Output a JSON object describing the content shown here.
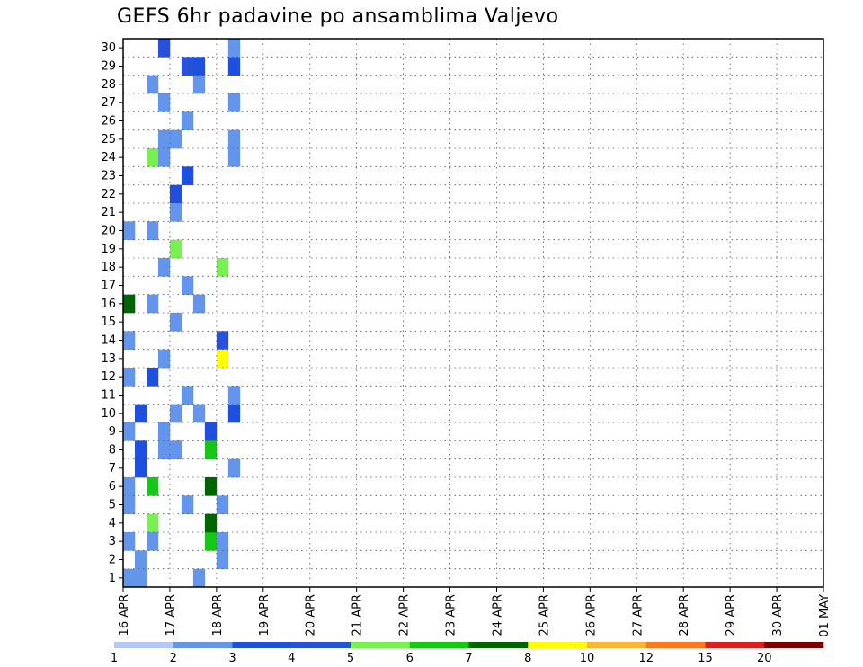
{
  "chart_data": {
    "type": "heatmap",
    "title": "GEFS 6hr padavine po ansamblima Valjevo",
    "x_tick_labels": [
      "16 APR",
      "17 APR",
      "18 APR",
      "19 APR",
      "20 APR",
      "21 APR",
      "22 APR",
      "23 APR",
      "24 APR",
      "25 APR",
      "26 APR",
      "27 APR",
      "28 APR",
      "29 APR",
      "30 APR",
      "01 MAY"
    ],
    "y_tick_labels": [
      "1",
      "2",
      "3",
      "4",
      "5",
      "6",
      "7",
      "8",
      "9",
      "10",
      "11",
      "12",
      "13",
      "14",
      "15",
      "16",
      "17",
      "18",
      "19",
      "20",
      "21",
      "22",
      "23",
      "24",
      "25",
      "26",
      "27",
      "28",
      "29",
      "30"
    ],
    "legend": {
      "labels": [
        "1",
        "2",
        "3",
        "4",
        "5",
        "6",
        "7",
        "8",
        "10",
        "12",
        "15",
        "20"
      ],
      "colors": [
        "#b4c8f5",
        "#6495ed",
        "#1e50e0",
        "#2850d8",
        "#78f050",
        "#14c814",
        "#006400",
        "#ffff00",
        "#ffb432",
        "#ff781e",
        "#dc1e1e",
        "#7d0000"
      ]
    },
    "x_range_steps": [
      0,
      60
    ],
    "y_range": [
      0,
      30
    ],
    "cells": [
      [
        1,
        1,
        0
      ],
      [
        1,
        3,
        0
      ],
      [
        1,
        6,
        0
      ],
      [
        2,
        8,
        1
      ],
      [
        2,
        7,
        1
      ],
      [
        1,
        5,
        0
      ],
      [
        1,
        9,
        0
      ],
      [
        1,
        12,
        0
      ],
      [
        2,
        10,
        1
      ],
      [
        1,
        14,
        0
      ],
      [
        6,
        16,
        0
      ],
      [
        1,
        20,
        0
      ],
      [
        1,
        1,
        1
      ],
      [
        1,
        2,
        1
      ],
      [
        4,
        4,
        2
      ],
      [
        1,
        3,
        2
      ],
      [
        5,
        6,
        2
      ],
      [
        2,
        12,
        2
      ],
      [
        1,
        16,
        2
      ],
      [
        1,
        20,
        2
      ],
      [
        4,
        24,
        2
      ],
      [
        1,
        28,
        2
      ],
      [
        1,
        8,
        3
      ],
      [
        1,
        9,
        3
      ],
      [
        1,
        13,
        3
      ],
      [
        1,
        18,
        3
      ],
      [
        1,
        24,
        3
      ],
      [
        1,
        25,
        3
      ],
      [
        1,
        27,
        3
      ],
      [
        3,
        30,
        3
      ],
      [
        1,
        8,
        4
      ],
      [
        1,
        10,
        4
      ],
      [
        1,
        15,
        4
      ],
      [
        2,
        22,
        4
      ],
      [
        1,
        21,
        4
      ],
      [
        4,
        19,
        4
      ],
      [
        1,
        25,
        4
      ],
      [
        1,
        5,
        5
      ],
      [
        3,
        29,
        5
      ],
      [
        1,
        11,
        5
      ],
      [
        1,
        17,
        5
      ],
      [
        2,
        23,
        5
      ],
      [
        1,
        26,
        5
      ],
      [
        1,
        10,
        6
      ],
      [
        1,
        16,
        6
      ],
      [
        2,
        29,
        6
      ],
      [
        1,
        1,
        6
      ],
      [
        1,
        28,
        6
      ],
      [
        2,
        9,
        7
      ],
      [
        5,
        3,
        7
      ],
      [
        6,
        4,
        7
      ],
      [
        5,
        8,
        7
      ],
      [
        6,
        6,
        7
      ],
      [
        1,
        2,
        8
      ],
      [
        1,
        3,
        8
      ],
      [
        1,
        5,
        8
      ],
      [
        3,
        14,
        8
      ],
      [
        7,
        13,
        8
      ],
      [
        4,
        18,
        8
      ],
      [
        1,
        7,
        9
      ],
      [
        2,
        10,
        9
      ],
      [
        1,
        24,
        9
      ],
      [
        1,
        25,
        9
      ],
      [
        1,
        27,
        9
      ],
      [
        2,
        29,
        9
      ],
      [
        1,
        30,
        9
      ],
      [
        1,
        11,
        9
      ]
    ]
  }
}
